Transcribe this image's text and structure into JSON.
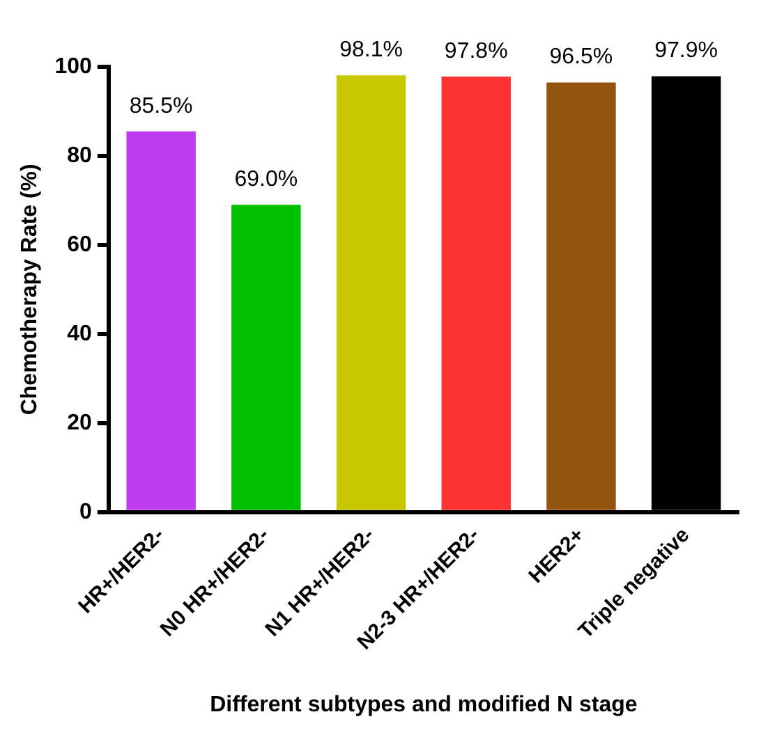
{
  "chart_data": {
    "type": "bar",
    "xlabel": "Different subtypes and modified N stage",
    "ylabel": "Chemotherapy Rate (%)",
    "categories": [
      "HR+/HER2-",
      "N0 HR+/HER2-",
      "N1 HR+/HER2-",
      "N2-3 HR+/HER2-",
      "HER2+",
      "Triple negative"
    ],
    "values": [
      85.5,
      69.0,
      98.1,
      97.8,
      96.5,
      97.9
    ],
    "value_labels": [
      "85.5%",
      "69.0%",
      "98.1%",
      "97.8%",
      "96.5%",
      "97.9%"
    ],
    "colors": [
      "#c03cf0",
      "#00c000",
      "#c8c800",
      "#ff3333",
      "#935410",
      "#000000"
    ],
    "ylim": [
      0,
      100
    ],
    "yticks": [
      0,
      20,
      40,
      60,
      80,
      100
    ],
    "grid": false,
    "legend": false
  }
}
